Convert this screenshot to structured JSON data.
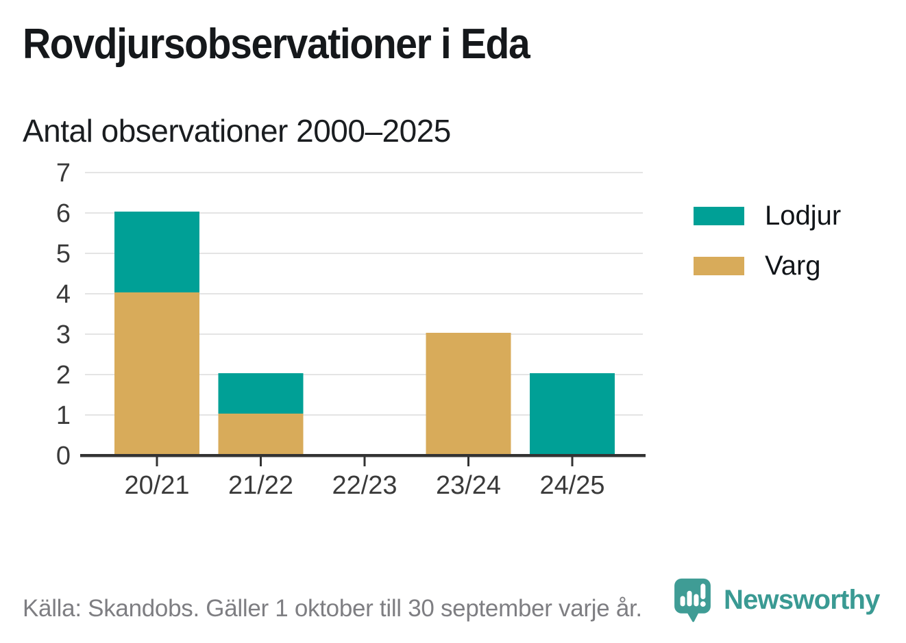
{
  "chart_data": {
    "type": "bar",
    "stacked": true,
    "title": "Rovdjursobservationer i Eda",
    "subtitle": "Antal observationer 2000–2025",
    "categories": [
      "20/21",
      "21/22",
      "22/23",
      "23/24",
      "24/25"
    ],
    "series": [
      {
        "name": "Lodjur",
        "color": "#00A096",
        "values": [
          2,
          1,
          0,
          0,
          2
        ]
      },
      {
        "name": "Varg",
        "color": "#D8AB5A",
        "values": [
          4,
          1,
          0,
          3,
          0
        ]
      }
    ],
    "stack_totals": [
      6,
      2,
      0,
      3,
      2
    ],
    "stack_order_bottom_to_top": [
      "Varg",
      "Lodjur"
    ],
    "xlabel": "",
    "ylabel": "",
    "ylim": [
      0,
      7
    ],
    "yticks": [
      0,
      1,
      2,
      3,
      4,
      5,
      6,
      7
    ],
    "grid": true,
    "legend_position": "right",
    "colors": {
      "grid": "#e4e4e4",
      "axis": "#333333",
      "tick_label": "#3a3a3a"
    }
  },
  "footer": {
    "source": "Källa: Skandobs. Gäller 1 oktober till 30 september varje år.",
    "brand": "Newsworthy",
    "brand_color": "#3a9a93"
  }
}
